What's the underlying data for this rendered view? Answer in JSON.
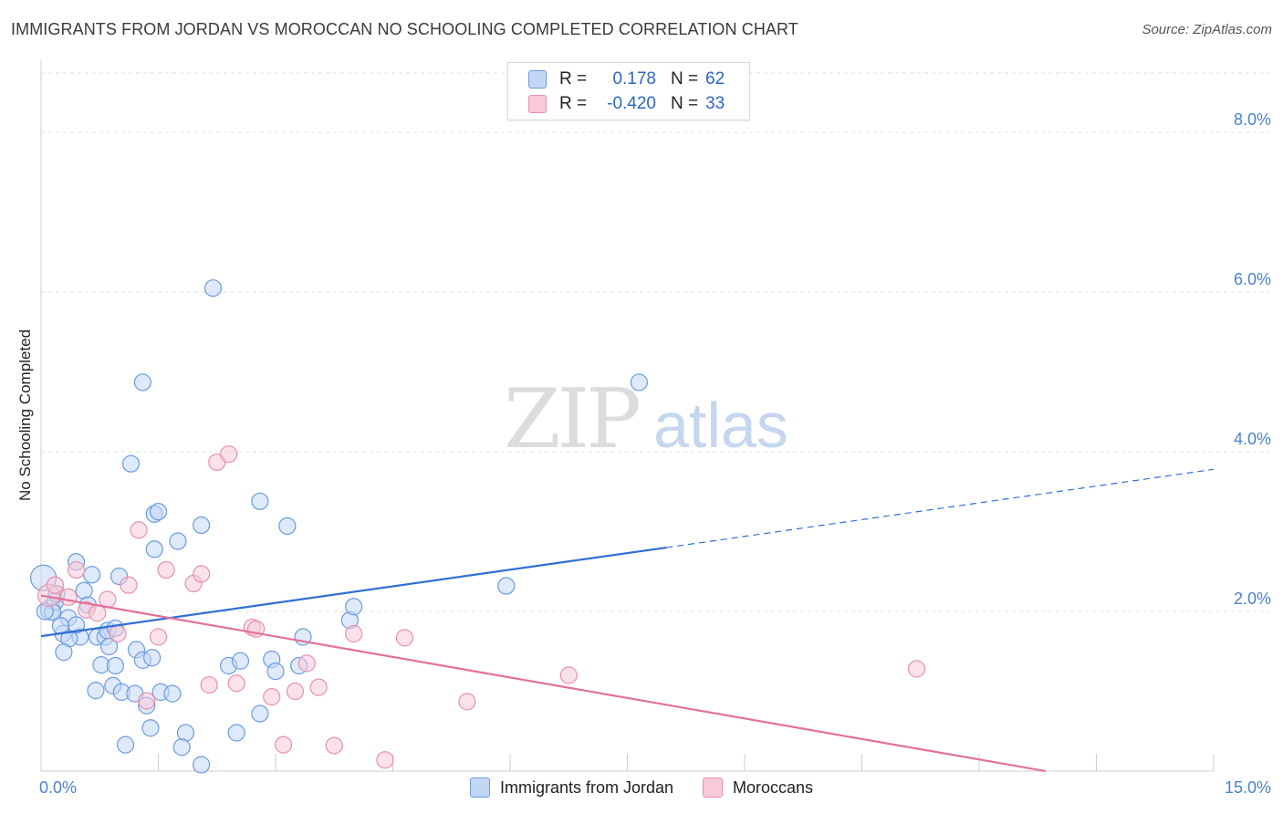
{
  "header": {
    "title": "IMMIGRANTS FROM JORDAN VS MOROCCAN NO SCHOOLING COMPLETED CORRELATION CHART",
    "source": "Source: ZipAtlas.com"
  },
  "watermark": {
    "zip": "ZIP",
    "atlas": "atlas"
  },
  "stats": [
    {
      "r_label": "R =",
      "r_value": "0.178",
      "n_label": "N =",
      "n_value": "62"
    },
    {
      "r_label": "R =",
      "r_value": "-0.420",
      "n_label": "N =",
      "n_value": "33"
    }
  ],
  "legend": [
    {
      "label": "Immigrants from Jordan"
    },
    {
      "label": "Moroccans"
    }
  ],
  "colors": {
    "blue_fill": "#c3d7f5",
    "blue_stroke": "#6b9be0",
    "blue_line": "#2f6fd6",
    "pink_fill": "#f8cad8",
    "pink_stroke": "#e890ad",
    "pink_line": "#e3709a",
    "axis_tick": "#4a7fd6",
    "grid": "#e2e2e2"
  },
  "chart_data": {
    "type": "scatter",
    "ylabel": "No Schooling Completed",
    "xlabel": "",
    "xlim": [
      0,
      15
    ],
    "ylim": [
      0,
      8.0
    ],
    "x_tick_labels": [
      "0.0%",
      "15.0%"
    ],
    "y_ticks": [
      2.0,
      4.0,
      6.0,
      8.0
    ],
    "y_tick_labels": [
      "2.0%",
      "4.0%",
      "6.0%",
      "8.0%"
    ],
    "grid": "horizontal dashed",
    "series": [
      {
        "name": "Immigrants from Jordan",
        "color": "blue",
        "points": [
          [
            0.03,
            2.42,
            14
          ],
          [
            0.12,
            2.02,
            11
          ],
          [
            0.18,
            2.12,
            9
          ],
          [
            0.2,
            2.22,
            9
          ],
          [
            0.45,
            2.62,
            9
          ],
          [
            0.55,
            2.26,
            9
          ],
          [
            0.6,
            2.08,
            9
          ],
          [
            0.35,
            1.92,
            9
          ],
          [
            0.28,
            1.72,
            9
          ],
          [
            0.5,
            1.68,
            9
          ],
          [
            0.36,
            1.66,
            9
          ],
          [
            0.45,
            1.83,
            9
          ],
          [
            0.25,
            1.82,
            9
          ],
          [
            0.15,
            1.99,
            9
          ],
          [
            0.65,
            2.46,
            9
          ],
          [
            0.72,
            1.68,
            9
          ],
          [
            0.82,
            1.68,
            9
          ],
          [
            0.85,
            1.76,
            9
          ],
          [
            0.87,
            1.56,
            9
          ],
          [
            0.95,
            1.79,
            9
          ],
          [
            0.29,
            1.49,
            9
          ],
          [
            0.77,
            1.33,
            9
          ],
          [
            0.95,
            1.32,
            9
          ],
          [
            1.0,
            2.44,
            9
          ],
          [
            1.22,
            1.52,
            9
          ],
          [
            1.3,
            1.39,
            9
          ],
          [
            1.42,
            1.42,
            9
          ],
          [
            0.7,
            1.01,
            9
          ],
          [
            0.92,
            1.07,
            9
          ],
          [
            1.03,
            0.99,
            9
          ],
          [
            1.2,
            0.97,
            9
          ],
          [
            1.35,
            0.82,
            9
          ],
          [
            1.53,
            0.99,
            9
          ],
          [
            1.68,
            0.97,
            9
          ],
          [
            1.4,
            0.54,
            9
          ],
          [
            1.08,
            0.33,
            9
          ],
          [
            1.85,
            0.48,
            9
          ],
          [
            1.8,
            0.3,
            9
          ],
          [
            2.05,
            0.08,
            9
          ],
          [
            2.4,
            1.32,
            9
          ],
          [
            2.55,
            1.38,
            9
          ],
          [
            2.5,
            0.48,
            9
          ],
          [
            2.8,
            0.72,
            9
          ],
          [
            2.95,
            1.4,
            9
          ],
          [
            3.0,
            1.25,
            9
          ],
          [
            3.3,
            1.32,
            9
          ],
          [
            3.35,
            1.68,
            9
          ],
          [
            3.95,
            1.89,
            9
          ],
          [
            4.0,
            2.06,
            9
          ],
          [
            1.15,
            3.85,
            9
          ],
          [
            1.45,
            3.22,
            9
          ],
          [
            1.5,
            3.25,
            9
          ],
          [
            1.45,
            2.78,
            9
          ],
          [
            1.75,
            2.88,
            9
          ],
          [
            2.05,
            3.08,
            9
          ],
          [
            2.8,
            3.38,
            9
          ],
          [
            3.15,
            3.07,
            9
          ],
          [
            1.3,
            4.87,
            9
          ],
          [
            2.2,
            6.05,
            9
          ],
          [
            7.65,
            4.87,
            9
          ],
          [
            5.95,
            2.32,
            9
          ],
          [
            0.05,
            2.0,
            9
          ]
        ]
      },
      {
        "name": "Moroccans",
        "color": "pink",
        "points": [
          [
            0.1,
            2.2,
            12
          ],
          [
            0.18,
            2.33,
            9
          ],
          [
            0.35,
            2.18,
            9
          ],
          [
            0.45,
            2.52,
            9
          ],
          [
            0.58,
            2.02,
            9
          ],
          [
            0.72,
            1.98,
            9
          ],
          [
            0.85,
            2.15,
            9
          ],
          [
            0.98,
            1.72,
            9
          ],
          [
            1.12,
            2.33,
            9
          ],
          [
            1.25,
            3.02,
            9
          ],
          [
            1.6,
            2.52,
            9
          ],
          [
            1.5,
            1.68,
            9
          ],
          [
            1.95,
            2.35,
            9
          ],
          [
            2.05,
            2.47,
            9
          ],
          [
            2.25,
            3.87,
            9
          ],
          [
            2.4,
            3.97,
            9
          ],
          [
            1.35,
            0.88,
            9
          ],
          [
            2.15,
            1.08,
            9
          ],
          [
            2.5,
            1.1,
            9
          ],
          [
            2.7,
            1.8,
            9
          ],
          [
            2.75,
            1.78,
            9
          ],
          [
            2.95,
            0.93,
            9
          ],
          [
            3.1,
            0.33,
            9
          ],
          [
            3.25,
            1.0,
            9
          ],
          [
            3.4,
            1.35,
            9
          ],
          [
            3.55,
            1.05,
            9
          ],
          [
            3.75,
            0.32,
            9
          ],
          [
            4.0,
            1.72,
            9
          ],
          [
            4.4,
            0.14,
            9
          ],
          [
            4.65,
            1.67,
            9
          ],
          [
            5.45,
            0.87,
            9
          ],
          [
            6.75,
            1.2,
            9
          ],
          [
            11.2,
            1.28,
            9
          ]
        ]
      }
    ],
    "trendlines": [
      {
        "series": "Immigrants from Jordan",
        "x0": 0,
        "y0": 1.69,
        "x1": 8.0,
        "y1": 2.8,
        "dashed_to_x": 15.0,
        "dashed_to_y": 3.78
      },
      {
        "series": "Moroccans",
        "x0": 0,
        "y0": 2.2,
        "x1": 12.85,
        "y1": 0.0
      }
    ]
  }
}
